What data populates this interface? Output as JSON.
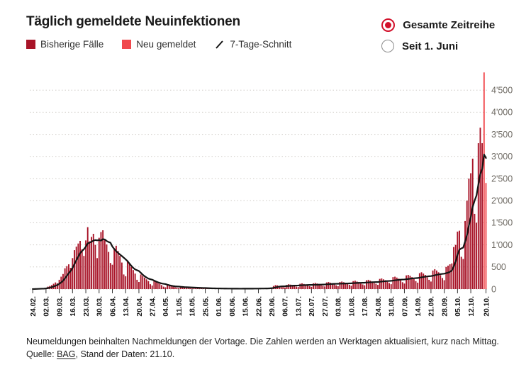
{
  "header": {
    "title": "Täglich gemeldete Neuinfektionen"
  },
  "legend": {
    "items": [
      {
        "label": "Bisherige Fälle",
        "color": "#a81428"
      },
      {
        "label": "Neu gemeldet",
        "color": "#f0484d"
      },
      {
        "label": "7-Tage-Schnitt",
        "color": "#141414"
      }
    ]
  },
  "controls": {
    "accent": "#d2112b",
    "options": [
      {
        "label": "Gesamte Zeitreihe",
        "selected": true
      },
      {
        "label": "Seit 1. Juni",
        "selected": false
      }
    ]
  },
  "chart_data": {
    "type": "bar",
    "title": "Täglich gemeldete Neuinfektionen",
    "series": [
      {
        "name": "Bisherige Fälle",
        "role": "daily-cases-previous"
      },
      {
        "name": "Neu gemeldet",
        "role": "daily-cases-newly-reported"
      },
      {
        "name": "7-Tage-Schnitt",
        "role": "7-day-average-line"
      }
    ],
    "start_date": "24.02.",
    "end_date": "20.10.",
    "x_tick_labels": [
      "24.02.",
      "02.03.",
      "09.03.",
      "16.03.",
      "23.03.",
      "30.03.",
      "06.04.",
      "13.04.",
      "20.04.",
      "27.04.",
      "04.05.",
      "11.05.",
      "18.05.",
      "25.05.",
      "01.06.",
      "08.06.",
      "15.06.",
      "22.06.",
      "29.06.",
      "06.07.",
      "13.07.",
      "20.07.",
      "27.07.",
      "03.08.",
      "10.08.",
      "17.08.",
      "24.08.",
      "31.08.",
      "07.09.",
      "14.09.",
      "21.09.",
      "28.09.",
      "05.10.",
      "12.10.",
      "20.10."
    ],
    "x_tick_days": [
      0,
      7,
      14,
      21,
      28,
      35,
      42,
      49,
      56,
      63,
      70,
      77,
      84,
      91,
      98,
      105,
      112,
      119,
      126,
      133,
      140,
      147,
      154,
      161,
      168,
      175,
      182,
      189,
      196,
      203,
      210,
      217,
      224,
      231,
      239
    ],
    "y_ticks": [
      0,
      500,
      1000,
      1500,
      2000,
      2500,
      3000,
      3500,
      4000,
      4500
    ],
    "y_tick_labels": [
      "0",
      "500",
      "1'000",
      "1'500",
      "2'000",
      "2'500",
      "3'000",
      "3'500",
      "4'000",
      "4'500"
    ],
    "ylim": [
      0,
      5000
    ],
    "grid": true,
    "legend_position": "top-left",
    "new_reported_last_n": 2,
    "colors": {
      "bar": "#a81428",
      "bar_new": "#f0484d",
      "avg_line": "#141414",
      "grid": "#cfccc6",
      "axis_text": "#6e6a63",
      "x_text": "#1c1c1c",
      "tick": "#333333"
    },
    "values": [
      1,
      2,
      7,
      10,
      15,
      20,
      18,
      30,
      55,
      70,
      90,
      120,
      150,
      130,
      210,
      280,
      340,
      470,
      520,
      560,
      480,
      700,
      880,
      960,
      1030,
      1090,
      900,
      750,
      1100,
      1400,
      1080,
      1180,
      1250,
      1000,
      700,
      1160,
      1290,
      1330,
      1120,
      1010,
      840,
      590,
      550,
      900,
      980,
      860,
      750,
      600,
      330,
      290,
      620,
      590,
      500,
      430,
      350,
      210,
      160,
      330,
      300,
      260,
      220,
      180,
      110,
      80,
      190,
      160,
      140,
      120,
      90,
      55,
      40,
      90,
      80,
      70,
      55,
      45,
      35,
      25,
      55,
      50,
      45,
      40,
      30,
      20,
      15,
      40,
      35,
      30,
      25,
      18,
      12,
      10,
      25,
      20,
      18,
      15,
      12,
      8,
      6,
      18,
      15,
      12,
      10,
      8,
      6,
      5,
      15,
      12,
      10,
      9,
      7,
      8,
      6,
      17,
      14,
      12,
      10,
      9,
      10,
      8,
      22,
      18,
      16,
      14,
      12,
      30,
      25,
      70,
      90,
      85,
      70,
      55,
      45,
      35,
      95,
      110,
      100,
      90,
      70,
      55,
      45,
      120,
      130,
      115,
      100,
      80,
      65,
      50,
      130,
      140,
      125,
      110,
      90,
      75,
      60,
      150,
      160,
      145,
      130,
      105,
      85,
      65,
      160,
      170,
      155,
      140,
      115,
      95,
      75,
      180,
      190,
      170,
      155,
      125,
      105,
      85,
      200,
      210,
      190,
      170,
      140,
      120,
      95,
      230,
      240,
      220,
      200,
      165,
      135,
      110,
      270,
      280,
      260,
      235,
      195,
      155,
      125,
      310,
      320,
      300,
      270,
      225,
      180,
      145,
      360,
      380,
      350,
      320,
      265,
      210,
      170,
      420,
      450,
      420,
      380,
      315,
      250,
      200,
      500,
      530,
      560,
      580,
      950,
      1000,
      1300,
      1320,
      730,
      680,
      1540,
      2000,
      2500,
      2620,
      2950,
      1700,
      1500,
      3300,
      3650,
      3300,
      4900,
      2400
    ]
  },
  "footer": {
    "note": "Neumeldungen beinhalten Nachmeldungen der Vortage. Die Zahlen werden an Werktagen aktualisiert, kurz nach Mittag.",
    "source_prefix": "Quelle: ",
    "source_link": "BAG",
    "source_suffix": ", Stand der Daten: 21.10."
  }
}
